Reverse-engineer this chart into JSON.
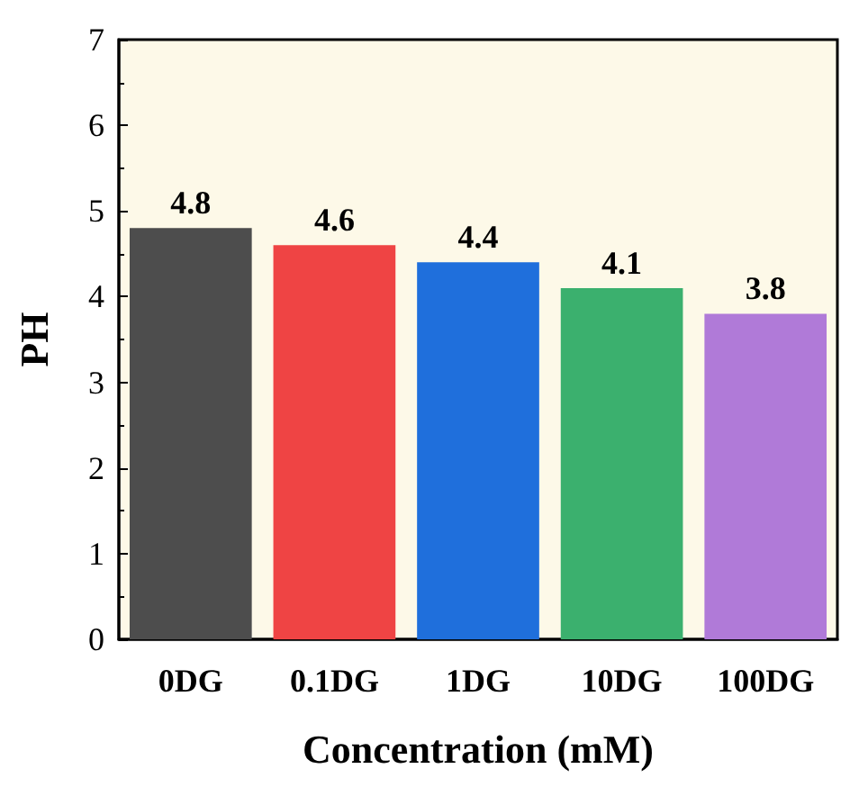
{
  "chart_data": {
    "type": "bar",
    "xlabel": "Concentration (mM)",
    "ylabel": "PH",
    "categories": [
      "0DG",
      "0.1DG",
      "1DG",
      "10DG",
      "100DG"
    ],
    "values": [
      4.8,
      4.6,
      4.4,
      4.1,
      3.8
    ],
    "colors": [
      "#4d4d4d",
      "#ef4444",
      "#1f6fdc",
      "#3bb06e",
      "#b07ad8"
    ],
    "ylim": [
      0,
      7
    ],
    "yticks": [
      0,
      1,
      2,
      3,
      4,
      5,
      6,
      7
    ],
    "grid": false,
    "data_labels": true
  }
}
